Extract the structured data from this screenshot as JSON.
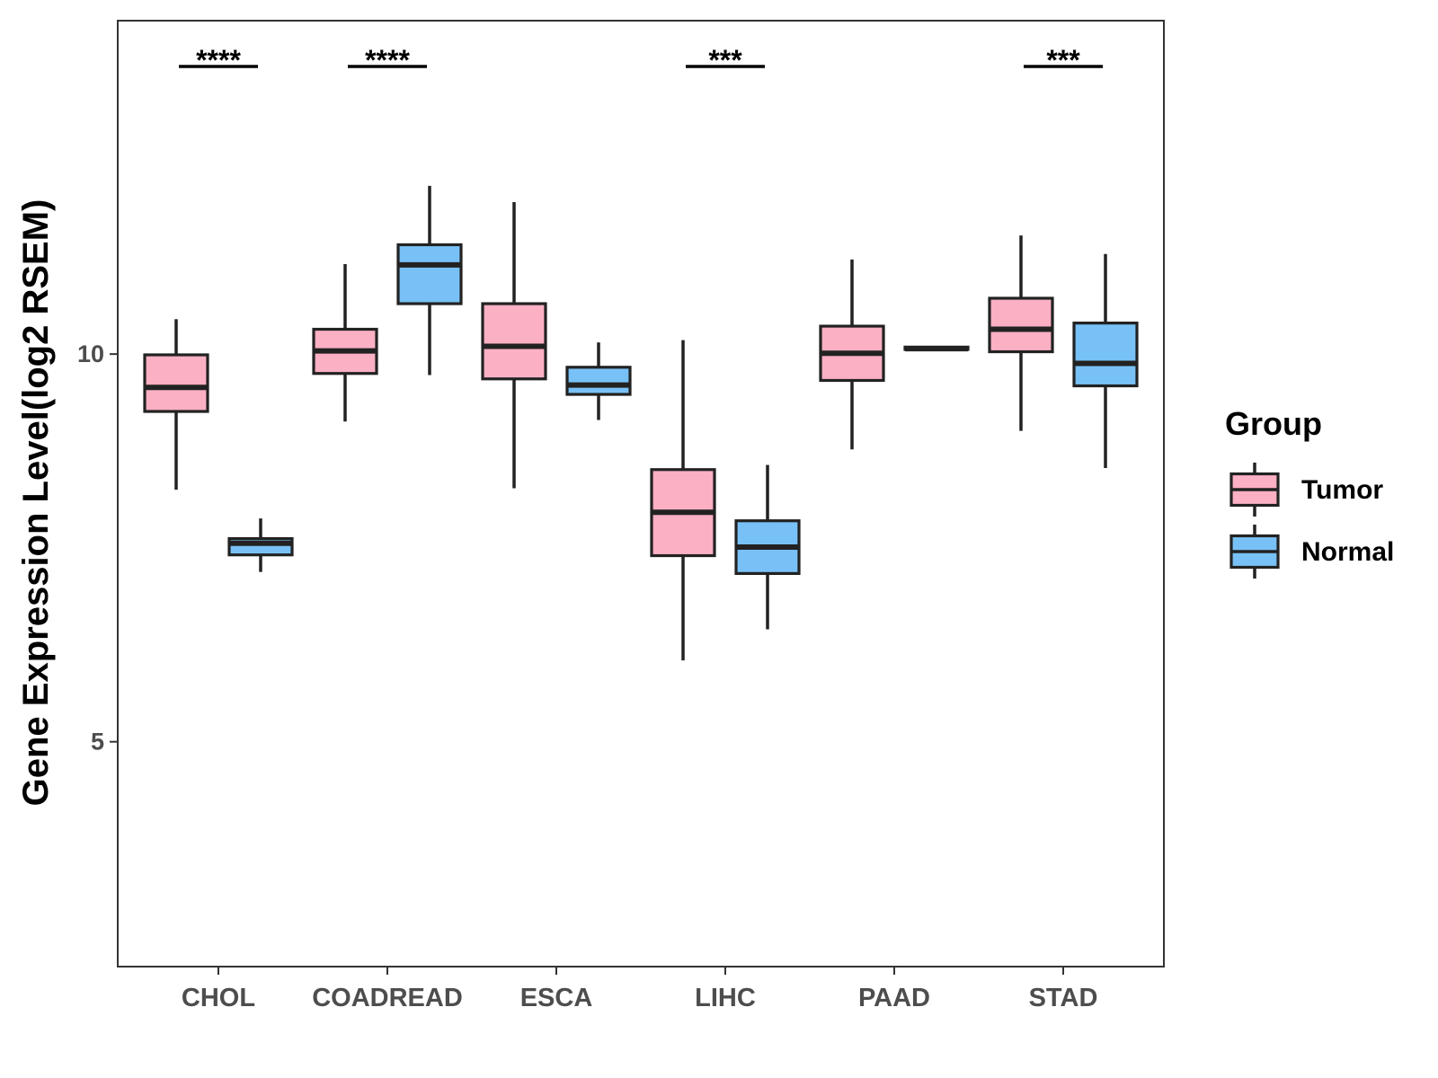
{
  "chart_data": {
    "type": "boxplot",
    "title": "",
    "xlabel": "",
    "ylabel": "Gene Expression Level(log2 RSEM)",
    "ylim": [
      2.1,
      14.3
    ],
    "y_ticks": [
      5,
      10
    ],
    "y_tick_labels": [
      "5",
      "10"
    ],
    "categories": [
      "CHOL",
      "COADREAD",
      "ESCA",
      "LIHC",
      "PAAD",
      "STAD"
    ],
    "legend": {
      "title": "Group",
      "position": "right",
      "entries": [
        "Tumor",
        "Normal"
      ]
    },
    "colors": {
      "Tumor": "#FBB0C3",
      "Normal": "#78C1F6",
      "outline": "#222222",
      "panel_border": "#333333",
      "axis_text": "#4d4d4d"
    },
    "significance": [
      {
        "category": "CHOL",
        "label": "****"
      },
      {
        "category": "COADREAD",
        "label": "****"
      },
      {
        "category": "ESCA",
        "label": ""
      },
      {
        "category": "LIHC",
        "label": "***"
      },
      {
        "category": "PAAD",
        "label": ""
      },
      {
        "category": "STAD",
        "label": "***"
      }
    ],
    "series": [
      {
        "name": "Tumor",
        "boxes": [
          {
            "category": "CHOL",
            "min": 8.25,
            "q1": 9.26,
            "median": 9.57,
            "q3": 9.99,
            "max": 10.45
          },
          {
            "category": "COADREAD",
            "min": 9.13,
            "q1": 9.75,
            "median": 10.04,
            "q3": 10.32,
            "max": 11.16
          },
          {
            "category": "ESCA",
            "min": 8.27,
            "q1": 9.68,
            "median": 10.1,
            "q3": 10.65,
            "max": 11.96
          },
          {
            "category": "LIHC",
            "min": 6.05,
            "q1": 7.4,
            "median": 7.96,
            "q3": 8.51,
            "max": 10.18
          },
          {
            "category": "PAAD",
            "min": 8.77,
            "q1": 9.66,
            "median": 10.01,
            "q3": 10.36,
            "max": 11.22
          },
          {
            "category": "STAD",
            "min": 9.01,
            "q1": 10.03,
            "median": 10.32,
            "q3": 10.72,
            "max": 11.53
          }
        ]
      },
      {
        "name": "Normal",
        "boxes": [
          {
            "category": "CHOL",
            "min": 7.19,
            "q1": 7.41,
            "median": 7.56,
            "q3": 7.62,
            "max": 7.88
          },
          {
            "category": "COADREAD",
            "min": 9.73,
            "q1": 10.65,
            "median": 11.15,
            "q3": 11.41,
            "max": 12.17
          },
          {
            "category": "ESCA",
            "min": 9.15,
            "q1": 9.48,
            "median": 9.6,
            "q3": 9.83,
            "max": 10.15
          },
          {
            "category": "LIHC",
            "min": 6.45,
            "q1": 7.17,
            "median": 7.51,
            "q3": 7.85,
            "max": 8.57
          },
          {
            "category": "PAAD",
            "min": 10.05,
            "q1": 10.06,
            "median": 10.07,
            "q3": 10.09,
            "max": 10.1
          },
          {
            "category": "STAD",
            "min": 8.53,
            "q1": 9.59,
            "median": 9.88,
            "q3": 10.4,
            "max": 11.29
          }
        ]
      }
    ]
  }
}
